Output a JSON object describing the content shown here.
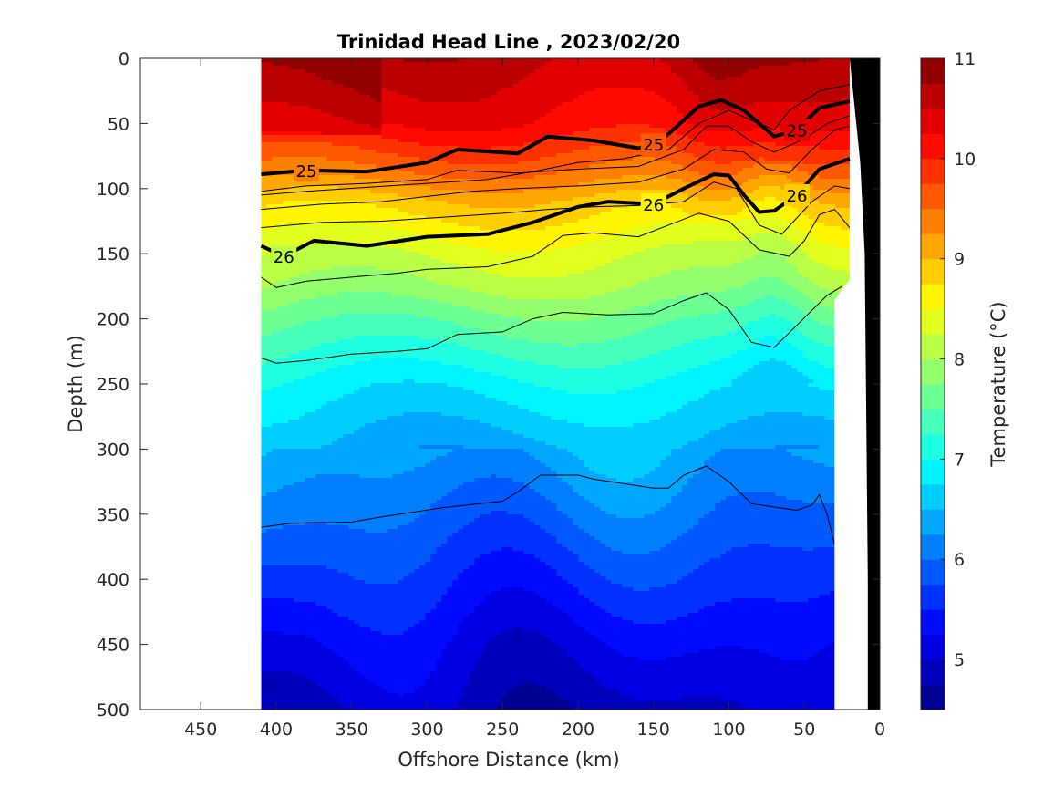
{
  "chart_data": {
    "type": "heatmap",
    "subtype": "filled-contour section",
    "title": "Trinidad Head Line , 2023/02/20",
    "xlabel": "Offshore Distance (km)",
    "ylabel": "Depth (m)",
    "xlim": [
      490,
      0
    ],
    "ylim": [
      0,
      500
    ],
    "x_direction": "reversed",
    "y_direction": "reversed",
    "x_ticks": [
      "450",
      "400",
      "350",
      "300",
      "250",
      "200",
      "150",
      "100",
      "50",
      "0"
    ],
    "y_ticks": [
      "0",
      "50",
      "100",
      "150",
      "200",
      "250",
      "300",
      "350",
      "400",
      "450",
      "500"
    ],
    "data_extent_km": [
      410,
      20
    ],
    "colorbar": {
      "label": "Temperature (°C)",
      "range": [
        4.5,
        11
      ],
      "ticks": [
        "5",
        "6",
        "7",
        "8",
        "9",
        "10",
        "11"
      ],
      "colormap": "jet",
      "level_step": 0.25
    },
    "temperature_profile": {
      "depth_m": [
        0,
        50,
        70,
        90,
        110,
        130,
        150,
        175,
        200,
        250,
        300,
        350,
        400,
        450,
        500
      ],
      "temp_c": [
        10.6,
        10.2,
        9.8,
        9.4,
        8.9,
        8.6,
        8.3,
        8.0,
        7.6,
        6.9,
        6.4,
        6.0,
        5.6,
        5.2,
        4.9
      ]
    },
    "density_contours": [
      {
        "label": "25",
        "points": [
          [
            410,
            89
          ],
          [
            380,
            86
          ],
          [
            340,
            87
          ],
          [
            300,
            80
          ],
          [
            280,
            70
          ],
          [
            240,
            73
          ],
          [
            220,
            60
          ],
          [
            190,
            63
          ],
          [
            160,
            69
          ],
          [
            150,
            66
          ],
          [
            140,
            58
          ],
          [
            120,
            37
          ],
          [
            105,
            32
          ],
          [
            90,
            40
          ],
          [
            75,
            55
          ],
          [
            70,
            60
          ],
          [
            55,
            55
          ],
          [
            40,
            38
          ],
          [
            20,
            33
          ]
        ]
      },
      {
        "label": "26",
        "points": [
          [
            410,
            144
          ],
          [
            395,
            152
          ],
          [
            375,
            140
          ],
          [
            340,
            144
          ],
          [
            300,
            137
          ],
          [
            260,
            135
          ],
          [
            230,
            126
          ],
          [
            200,
            114
          ],
          [
            180,
            110
          ],
          [
            150,
            112
          ],
          [
            130,
            100
          ],
          [
            110,
            89
          ],
          [
            100,
            90
          ],
          [
            90,
            105
          ],
          [
            80,
            118
          ],
          [
            70,
            117
          ],
          [
            55,
            105
          ],
          [
            40,
            85
          ],
          [
            20,
            77
          ]
        ]
      }
    ],
    "thin_isolines": [
      {
        "points": [
          [
            410,
            102
          ],
          [
            380,
            98
          ],
          [
            340,
            96
          ],
          [
            300,
            93
          ],
          [
            280,
            86
          ],
          [
            240,
            88
          ],
          [
            200,
            85
          ],
          [
            160,
            83
          ],
          [
            130,
            70
          ],
          [
            115,
            52
          ],
          [
            100,
            52
          ],
          [
            85,
            64
          ],
          [
            70,
            72
          ],
          [
            50,
            62
          ],
          [
            35,
            50
          ],
          [
            20,
            44
          ]
        ]
      },
      {
        "points": [
          [
            410,
            116
          ],
          [
            370,
            112
          ],
          [
            330,
            110
          ],
          [
            300,
            106
          ],
          [
            270,
            102
          ],
          [
            240,
            100
          ],
          [
            200,
            98
          ],
          [
            160,
            95
          ],
          [
            130,
            85
          ],
          [
            110,
            70
          ],
          [
            90,
            72
          ],
          [
            75,
            85
          ],
          [
            60,
            88
          ],
          [
            45,
            70
          ],
          [
            30,
            55
          ],
          [
            20,
            52
          ]
        ]
      },
      {
        "points": [
          [
            410,
            130
          ],
          [
            370,
            126
          ],
          [
            330,
            125
          ],
          [
            290,
            122
          ],
          [
            250,
            119
          ],
          [
            220,
            116
          ],
          [
            190,
            114
          ],
          [
            160,
            113
          ],
          [
            130,
            110
          ],
          [
            110,
            95
          ],
          [
            95,
            100
          ],
          [
            80,
            128
          ],
          [
            65,
            135
          ],
          [
            45,
            110
          ],
          [
            30,
            98
          ],
          [
            20,
            100
          ]
        ]
      },
      {
        "points": [
          [
            410,
            105
          ],
          [
            380,
            102
          ],
          [
            300,
            96
          ],
          [
            260,
            93
          ],
          [
            230,
            87
          ],
          [
            200,
            80
          ],
          [
            170,
            77
          ],
          [
            140,
            70
          ],
          [
            120,
            50
          ],
          [
            100,
            40
          ],
          [
            80,
            50
          ],
          [
            70,
            55
          ],
          [
            60,
            40
          ],
          [
            40,
            25
          ],
          [
            20,
            20
          ]
        ]
      },
      {
        "points": [
          [
            410,
            168
          ],
          [
            400,
            176
          ],
          [
            380,
            171
          ],
          [
            350,
            168
          ],
          [
            320,
            165
          ],
          [
            300,
            162
          ],
          [
            260,
            160
          ],
          [
            230,
            152
          ],
          [
            210,
            136
          ],
          [
            190,
            134
          ],
          [
            160,
            137
          ],
          [
            140,
            128
          ],
          [
            120,
            119
          ],
          [
            100,
            125
          ],
          [
            80,
            147
          ],
          [
            60,
            152
          ],
          [
            50,
            140
          ],
          [
            40,
            120
          ],
          [
            30,
            116
          ],
          [
            20,
            130
          ]
        ]
      },
      {
        "points": [
          [
            410,
            230
          ],
          [
            400,
            234
          ],
          [
            380,
            232
          ],
          [
            350,
            227
          ],
          [
            320,
            225
          ],
          [
            300,
            223
          ],
          [
            280,
            212
          ],
          [
            250,
            210
          ],
          [
            230,
            200
          ],
          [
            210,
            195
          ],
          [
            180,
            197
          ],
          [
            150,
            196
          ],
          [
            130,
            186
          ],
          [
            115,
            180
          ],
          [
            100,
            193
          ],
          [
            85,
            218
          ],
          [
            70,
            222
          ],
          [
            55,
            205
          ],
          [
            35,
            182
          ],
          [
            25,
            175
          ]
        ]
      },
      {
        "points": [
          [
            410,
            360
          ],
          [
            390,
            357
          ],
          [
            350,
            356
          ],
          [
            330,
            352
          ],
          [
            290,
            345
          ],
          [
            250,
            340
          ],
          [
            240,
            333
          ],
          [
            225,
            320
          ],
          [
            200,
            320
          ],
          [
            190,
            323
          ],
          [
            150,
            330
          ],
          [
            140,
            330
          ],
          [
            130,
            320
          ],
          [
            115,
            313
          ],
          [
            100,
            325
          ],
          [
            85,
            342
          ],
          [
            55,
            347
          ],
          [
            45,
            343
          ],
          [
            40,
            335
          ],
          [
            35,
            350
          ],
          [
            30,
            373
          ]
        ]
      }
    ],
    "coastline_bottom": [
      [
        20,
        0
      ],
      [
        13,
        80
      ],
      [
        10,
        150
      ],
      [
        8,
        400
      ],
      [
        8,
        500
      ]
    ],
    "data_gap_edge": [
      [
        30,
        185
      ],
      [
        30,
        470
      ],
      [
        30,
        500
      ]
    ]
  }
}
